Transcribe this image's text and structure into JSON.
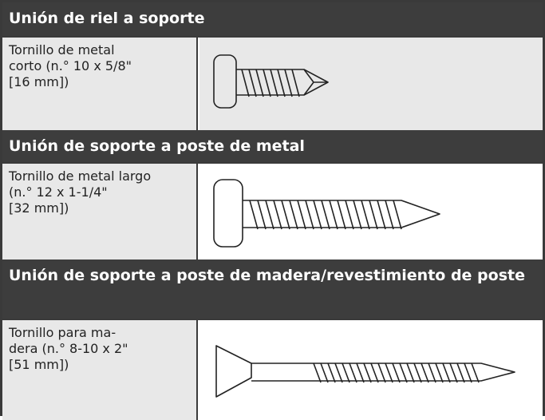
{
  "sections": [
    {
      "title": "Unión de riel a soporte",
      "description": [
        "Tornillo de metal",
        "corto (n.° 10 x 5/8\"",
        "[16 mm])"
      ]
    },
    {
      "title": "Unión de soporte a poste de metal",
      "description": [
        "Tornillo de metal largo",
        "(n.° 12 x 1-1/4\"",
        "[32 mm])"
      ]
    },
    {
      "title": "Unión de soporte a poste de madera/revestimiento de poste",
      "description": [
        "Tornillo para ma-",
        "dera (n.° 8-10 x 2\"",
        "[51 mm])"
      ]
    }
  ]
}
